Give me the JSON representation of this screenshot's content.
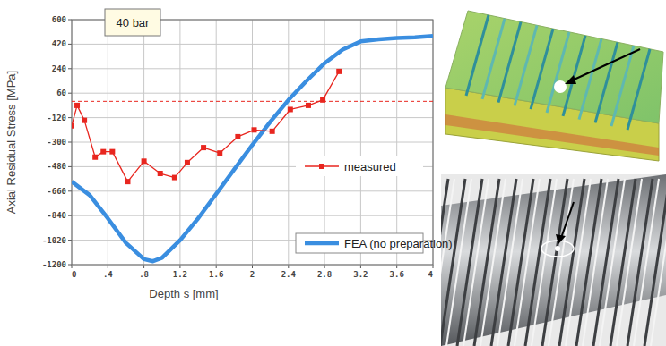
{
  "chart_data": {
    "type": "line",
    "annotations": [
      "40 bar"
    ],
    "x_label": "Depth s [mm]",
    "y_label": "Axial Residual Stress [MPa]",
    "xlim": [
      0,
      4
    ],
    "ylim": [
      -1200,
      600
    ],
    "xticks": [
      0,
      {
        "value": 0.4,
        "label": ".4"
      },
      {
        "value": 0.8,
        "label": ".8"
      },
      1.2,
      1.6,
      2,
      2.4,
      2.8,
      3.2,
      3.6,
      4
    ],
    "yticks": [
      600,
      420,
      240,
      60,
      -120,
      -300,
      -480,
      -660,
      -840,
      -1020,
      -1200
    ],
    "grid": true,
    "legend": "lower right",
    "reference_lines": [
      0
    ],
    "series": [
      {
        "name": "measured",
        "color": "#e8261f",
        "marker": "square",
        "line_style": "solid",
        "x": [
          0,
          0.06,
          0.14,
          0.26,
          0.35,
          0.45,
          0.62,
          0.8,
          0.98,
          1.14,
          1.28,
          1.46,
          1.64,
          1.84,
          2.02,
          2.22,
          2.42,
          2.62,
          2.78,
          2.96
        ],
        "values": [
          -180,
          -30,
          -140,
          -410,
          -370,
          -370,
          -590,
          -440,
          -530,
          -560,
          -450,
          -340,
          -380,
          -260,
          -210,
          -220,
          -60,
          -30,
          10,
          220
        ]
      },
      {
        "name": "FEA (no preparation)",
        "color": "#3a8ee0",
        "line_style": "solid",
        "x": [
          0,
          0.2,
          0.4,
          0.6,
          0.8,
          0.9,
          1.0,
          1.2,
          1.4,
          1.6,
          1.8,
          2.0,
          2.2,
          2.4,
          2.6,
          2.8,
          3.0,
          3.2,
          3.4,
          3.6,
          3.8,
          4.0
        ],
        "values": [
          -590,
          -690,
          -860,
          -1040,
          -1160,
          -1175,
          -1150,
          -1020,
          -860,
          -680,
          -500,
          -320,
          -150,
          10,
          150,
          280,
          380,
          440,
          455,
          465,
          470,
          480
        ]
      }
    ]
  }
}
